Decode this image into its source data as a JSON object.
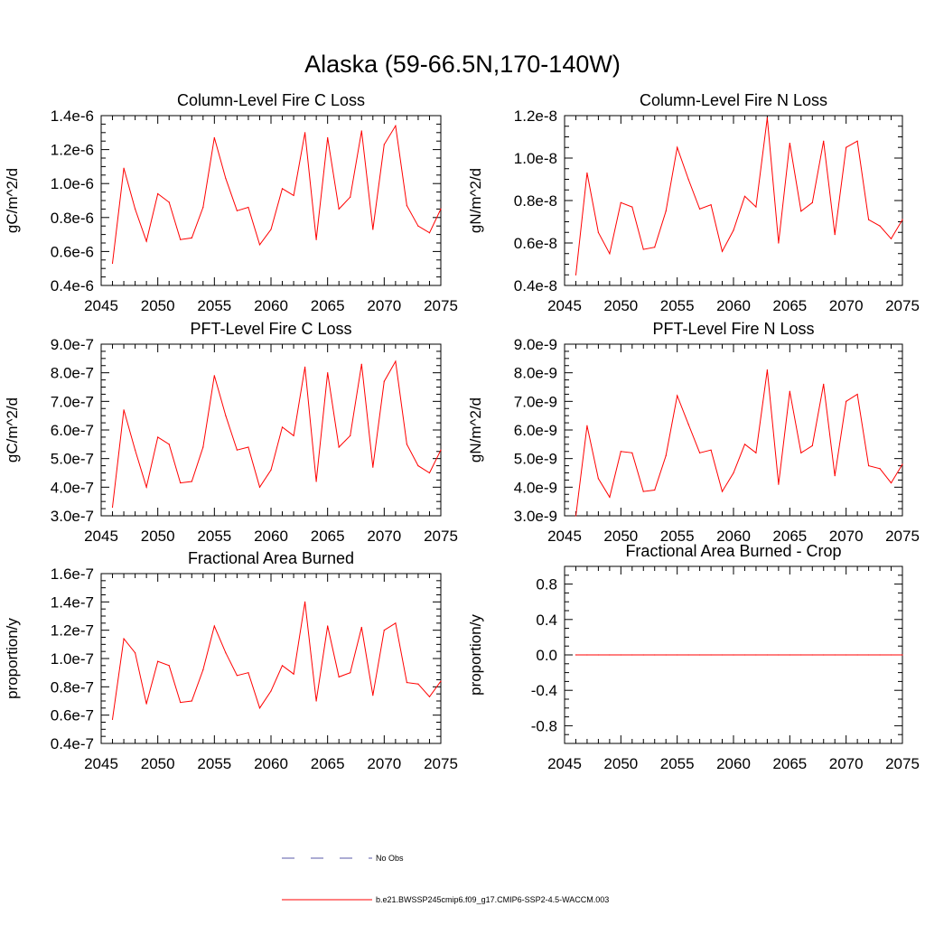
{
  "title": "Alaska (59-66.5N,170-140W)",
  "colors": {
    "series": "#ff0000",
    "obs": "#5a5aa8",
    "axis": "#000000"
  },
  "legend": {
    "obs_label": "No Obs",
    "model_label": "b.e21.BWSSP245cmip6.f09_g17.CMIP6-SSP2-4.5-WACCM.003"
  },
  "chart_data": [
    {
      "type": "line",
      "title": "Column-Level Fire C Loss",
      "ylabel": "gC/m^2/d",
      "xlim": [
        2045,
        2075
      ],
      "ylim": [
        0.4,
        1.4
      ],
      "xticks": [
        2045,
        2050,
        2055,
        2060,
        2065,
        2070,
        2075
      ],
      "yticks": [
        0.4,
        0.6,
        0.8,
        1.0,
        1.2,
        1.4
      ],
      "ytick_labels": [
        "0.4e-6",
        "0.6e-6",
        "0.8e-6",
        "1.0e-6",
        "1.2e-6",
        "1.4e-6"
      ],
      "y_unit_exponent": "e-6",
      "x": [
        2046,
        2047,
        2048,
        2049,
        2050,
        2051,
        2052,
        2053,
        2054,
        2055,
        2056,
        2057,
        2058,
        2059,
        2060,
        2061,
        2062,
        2063,
        2064,
        2065,
        2066,
        2067,
        2068,
        2069,
        2070,
        2071,
        2072,
        2073,
        2074,
        2075
      ],
      "series": [
        {
          "name": "b.e21.BWSSP245cmip6.f09_g17.CMIP6-SSP2-4.5-WACCM.003",
          "values": [
            0.53,
            1.09,
            0.85,
            0.66,
            0.94,
            0.89,
            0.67,
            0.68,
            0.86,
            1.27,
            1.03,
            0.84,
            0.86,
            0.64,
            0.73,
            0.97,
            0.93,
            1.3,
            0.67,
            1.27,
            0.85,
            0.92,
            1.31,
            0.73,
            1.23,
            1.34,
            0.87,
            0.75,
            0.71,
            0.85
          ]
        }
      ]
    },
    {
      "type": "line",
      "title": "Column-Level Fire N Loss",
      "ylabel": "gN/m^2/d",
      "xlim": [
        2045,
        2075
      ],
      "ylim": [
        0.4,
        1.2
      ],
      "xticks": [
        2045,
        2050,
        2055,
        2060,
        2065,
        2070,
        2075
      ],
      "yticks": [
        0.4,
        0.6,
        0.8,
        1.0,
        1.2
      ],
      "ytick_labels": [
        "0.4e-8",
        "0.6e-8",
        "0.8e-8",
        "1.0e-8",
        "1.2e-8"
      ],
      "y_unit_exponent": "e-8",
      "x": [
        2046,
        2047,
        2048,
        2049,
        2050,
        2051,
        2052,
        2053,
        2054,
        2055,
        2056,
        2057,
        2058,
        2059,
        2060,
        2061,
        2062,
        2063,
        2064,
        2065,
        2066,
        2067,
        2068,
        2069,
        2070,
        2071,
        2072,
        2073,
        2074,
        2075
      ],
      "series": [
        {
          "name": "b.e21.BWSSP245cmip6.f09_g17.CMIP6-SSP2-4.5-WACCM.003",
          "values": [
            0.45,
            0.93,
            0.65,
            0.55,
            0.79,
            0.77,
            0.57,
            0.58,
            0.75,
            1.05,
            0.9,
            0.76,
            0.78,
            0.56,
            0.66,
            0.82,
            0.77,
            1.19,
            0.6,
            1.07,
            0.75,
            0.79,
            1.08,
            0.64,
            1.05,
            1.08,
            0.71,
            0.68,
            0.62,
            0.71
          ]
        }
      ]
    },
    {
      "type": "line",
      "title": "PFT-Level Fire C Loss",
      "ylabel": "gC/m^2/d",
      "xlim": [
        2045,
        2075
      ],
      "ylim": [
        3.0,
        9.0
      ],
      "xticks": [
        2045,
        2050,
        2055,
        2060,
        2065,
        2070,
        2075
      ],
      "yticks": [
        3.0,
        4.0,
        5.0,
        6.0,
        7.0,
        8.0,
        9.0
      ],
      "ytick_labels": [
        "3.0e-7",
        "4.0e-7",
        "5.0e-7",
        "6.0e-7",
        "7.0e-7",
        "8.0e-7",
        "9.0e-7"
      ],
      "y_unit_exponent": "e-7",
      "x": [
        2046,
        2047,
        2048,
        2049,
        2050,
        2051,
        2052,
        2053,
        2054,
        2055,
        2056,
        2057,
        2058,
        2059,
        2060,
        2061,
        2062,
        2063,
        2064,
        2065,
        2066,
        2067,
        2068,
        2069,
        2070,
        2071,
        2072,
        2073,
        2074,
        2075
      ],
      "series": [
        {
          "name": "b.e21.BWSSP245cmip6.f09_g17.CMIP6-SSP2-4.5-WACCM.003",
          "values": [
            3.3,
            6.7,
            5.3,
            4.0,
            5.75,
            5.5,
            4.15,
            4.2,
            5.4,
            7.9,
            6.5,
            5.3,
            5.4,
            4.0,
            4.6,
            6.1,
            5.8,
            8.2,
            4.2,
            8.0,
            5.4,
            5.8,
            8.3,
            4.7,
            7.7,
            8.4,
            5.5,
            4.75,
            4.5,
            5.3
          ]
        }
      ]
    },
    {
      "type": "line",
      "title": "PFT-Level Fire N Loss",
      "ylabel": "gN/m^2/d",
      "xlim": [
        2045,
        2075
      ],
      "ylim": [
        3.0,
        9.0
      ],
      "xticks": [
        2045,
        2050,
        2055,
        2060,
        2065,
        2070,
        2075
      ],
      "yticks": [
        3.0,
        4.0,
        5.0,
        6.0,
        7.0,
        8.0,
        9.0
      ],
      "ytick_labels": [
        "3.0e-9",
        "4.0e-9",
        "5.0e-9",
        "6.0e-9",
        "7.0e-9",
        "8.0e-9",
        "9.0e-9"
      ],
      "y_unit_exponent": "e-9",
      "x": [
        2046,
        2047,
        2048,
        2049,
        2050,
        2051,
        2052,
        2053,
        2054,
        2055,
        2056,
        2057,
        2058,
        2059,
        2060,
        2061,
        2062,
        2063,
        2064,
        2065,
        2066,
        2067,
        2068,
        2069,
        2070,
        2071,
        2072,
        2073,
        2074,
        2075
      ],
      "series": [
        {
          "name": "b.e21.BWSSP245cmip6.f09_g17.CMIP6-SSP2-4.5-WACCM.003",
          "values": [
            3.0,
            6.15,
            4.3,
            3.65,
            5.25,
            5.2,
            3.85,
            3.9,
            5.1,
            7.2,
            6.2,
            5.2,
            5.3,
            3.85,
            4.5,
            5.5,
            5.2,
            8.1,
            4.1,
            7.35,
            5.2,
            5.45,
            7.6,
            4.4,
            7.0,
            7.25,
            4.75,
            4.65,
            4.15,
            4.8
          ]
        }
      ]
    },
    {
      "type": "line",
      "title": "Fractional Area Burned",
      "ylabel": "proportion/y",
      "xlim": [
        2045,
        2075
      ],
      "ylim": [
        0.4,
        1.6
      ],
      "xticks": [
        2045,
        2050,
        2055,
        2060,
        2065,
        2070,
        2075
      ],
      "yticks": [
        0.4,
        0.6,
        0.8,
        1.0,
        1.2,
        1.4,
        1.6
      ],
      "ytick_labels": [
        "0.4e-7",
        "0.6e-7",
        "0.8e-7",
        "1.0e-7",
        "1.2e-7",
        "1.4e-7",
        "1.6e-7"
      ],
      "y_unit_exponent": "e-7",
      "x": [
        2046,
        2047,
        2048,
        2049,
        2050,
        2051,
        2052,
        2053,
        2054,
        2055,
        2056,
        2057,
        2058,
        2059,
        2060,
        2061,
        2062,
        2063,
        2064,
        2065,
        2066,
        2067,
        2068,
        2069,
        2070,
        2071,
        2072,
        2073,
        2074,
        2075
      ],
      "series": [
        {
          "name": "b.e21.BWSSP245cmip6.f09_g17.CMIP6-SSP2-4.5-WACCM.003",
          "values": [
            0.57,
            1.14,
            1.04,
            0.68,
            0.98,
            0.95,
            0.69,
            0.7,
            0.92,
            1.23,
            1.04,
            0.88,
            0.9,
            0.65,
            0.77,
            0.95,
            0.89,
            1.4,
            0.7,
            1.23,
            0.87,
            0.9,
            1.22,
            0.74,
            1.2,
            1.25,
            0.83,
            0.82,
            0.73,
            0.84
          ]
        }
      ]
    },
    {
      "type": "line",
      "title": "Fractional Area Burned - Crop",
      "ylabel": "proportion/y",
      "xlim": [
        2045,
        2075
      ],
      "ylim": [
        -1.0,
        1.0
      ],
      "xticks": [
        2045,
        2050,
        2055,
        2060,
        2065,
        2070,
        2075
      ],
      "yticks": [
        -0.8,
        -0.4,
        0.0,
        0.4,
        0.8
      ],
      "ytick_labels": [
        "-0.8",
        "-0.4",
        "0.0",
        "0.4",
        "0.8"
      ],
      "y_unit_exponent": "",
      "x": [
        2046,
        2047,
        2048,
        2049,
        2050,
        2051,
        2052,
        2053,
        2054,
        2055,
        2056,
        2057,
        2058,
        2059,
        2060,
        2061,
        2062,
        2063,
        2064,
        2065,
        2066,
        2067,
        2068,
        2069,
        2070,
        2071,
        2072,
        2073,
        2074,
        2075
      ],
      "series": [
        {
          "name": "b.e21.BWSSP245cmip6.f09_g17.CMIP6-SSP2-4.5-WACCM.003",
          "values": [
            0,
            0,
            0,
            0,
            0,
            0,
            0,
            0,
            0,
            0,
            0,
            0,
            0,
            0,
            0,
            0,
            0,
            0,
            0,
            0,
            0,
            0,
            0,
            0,
            0,
            0,
            0,
            0,
            0,
            0
          ]
        }
      ]
    }
  ]
}
